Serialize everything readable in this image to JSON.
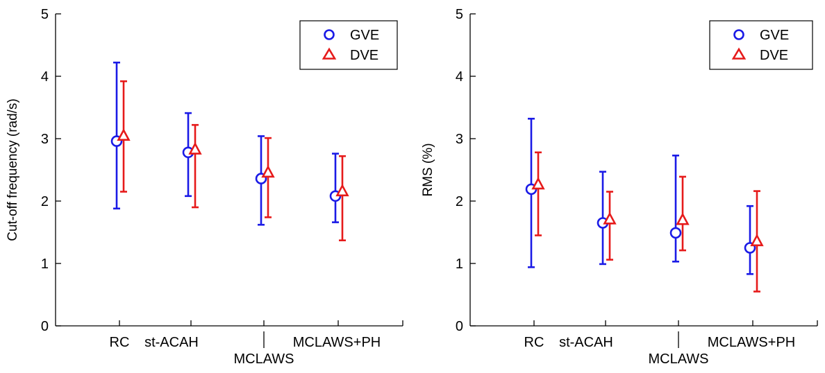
{
  "colors": {
    "GVE": "#1a1ae6",
    "DVE": "#e61a1a",
    "axis": "#000000"
  },
  "category_axis": {
    "categories": [
      "RC",
      "st-ACAH",
      "MCLAWS",
      "MCLAWS+PH"
    ]
  },
  "chart_data": [
    {
      "type": "scatter",
      "title": "",
      "xlabel": "",
      "ylabel": "Cut-off frequency (rad/s)",
      "ylim": [
        0,
        5
      ],
      "yticks": [
        0,
        1,
        2,
        3,
        4,
        5
      ],
      "categories": [
        "RC",
        "st-ACAH",
        "MCLAWS",
        "MCLAWS+PH"
      ],
      "legend_position": "top-right",
      "series": [
        {
          "name": "GVE",
          "marker": "circle",
          "color": "#1a1ae6",
          "values": [
            2.96,
            2.78,
            2.36,
            2.08
          ],
          "lower": [
            1.88,
            2.08,
            1.62,
            1.66
          ],
          "upper": [
            4.22,
            3.41,
            3.04,
            2.76
          ]
        },
        {
          "name": "DVE",
          "marker": "triangle",
          "color": "#e61a1a",
          "values": [
            3.04,
            2.82,
            2.45,
            2.15
          ],
          "lower": [
            2.15,
            1.9,
            1.74,
            1.37
          ],
          "upper": [
            3.92,
            3.22,
            3.01,
            2.72
          ]
        }
      ]
    },
    {
      "type": "scatter",
      "title": "",
      "xlabel": "",
      "ylabel": "RMS (%)",
      "ylim": [
        0,
        5
      ],
      "yticks": [
        0,
        1,
        2,
        3,
        4,
        5
      ],
      "categories": [
        "RC",
        "st-ACAH",
        "MCLAWS",
        "MCLAWS+PH"
      ],
      "legend_position": "top-right",
      "series": [
        {
          "name": "GVE",
          "marker": "circle",
          "color": "#1a1ae6",
          "values": [
            2.19,
            1.65,
            1.49,
            1.25
          ],
          "lower": [
            0.94,
            0.99,
            1.03,
            0.83
          ],
          "upper": [
            3.32,
            2.47,
            2.73,
            1.92
          ]
        },
        {
          "name": "DVE",
          "marker": "triangle",
          "color": "#e61a1a",
          "values": [
            2.26,
            1.7,
            1.69,
            1.35
          ],
          "lower": [
            1.45,
            1.06,
            1.21,
            0.55
          ],
          "upper": [
            2.78,
            2.15,
            2.39,
            2.16
          ]
        }
      ]
    }
  ]
}
